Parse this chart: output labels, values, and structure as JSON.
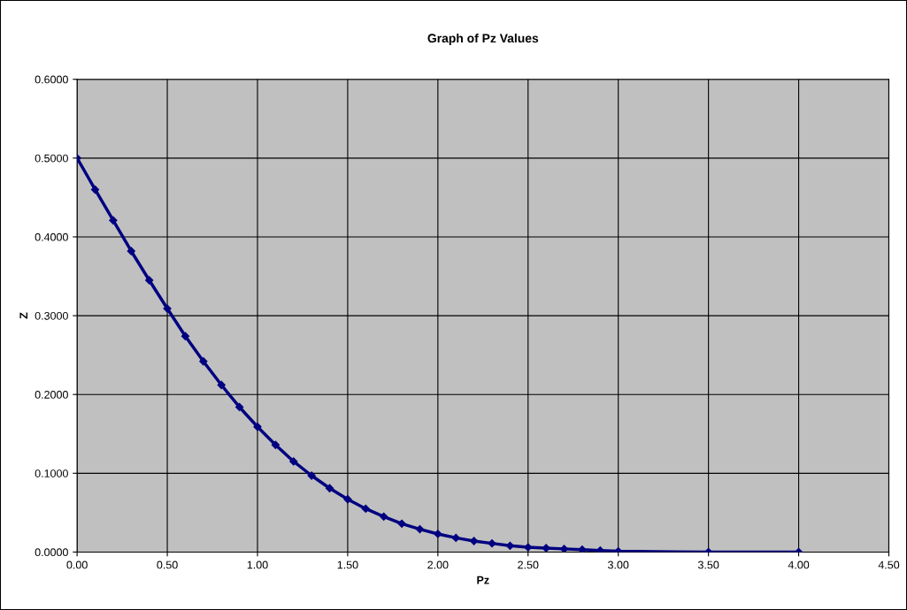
{
  "chart_data": {
    "type": "line",
    "title": "Graph of Pz Values",
    "xlabel": "Pz",
    "ylabel": "Z",
    "x": [
      0,
      0.1,
      0.2,
      0.3,
      0.4,
      0.5,
      0.6,
      0.7,
      0.8,
      0.9,
      1.0,
      1.1,
      1.2,
      1.3,
      1.4,
      1.5,
      1.6,
      1.7,
      1.8,
      1.9,
      2.0,
      2.1,
      2.2,
      2.3,
      2.4,
      2.5,
      2.6,
      2.7,
      2.8,
      2.9,
      3.0,
      3.5,
      4.0
    ],
    "series": [
      {
        "color": "#000080",
        "values": [
          0.5,
          0.46,
          0.421,
          0.382,
          0.345,
          0.309,
          0.274,
          0.242,
          0.212,
          0.184,
          0.159,
          0.136,
          0.115,
          0.097,
          0.081,
          0.067,
          0.055,
          0.045,
          0.036,
          0.029,
          0.023,
          0.018,
          0.014,
          0.011,
          0.008,
          0.006,
          0.005,
          0.004,
          0.003,
          0.002,
          0.001,
          0.0,
          0.0
        ]
      }
    ],
    "xlim": [
      0,
      4.5
    ],
    "xticks": [
      {
        "value": 0,
        "label": "0.00"
      },
      {
        "value": 0.5,
        "label": "0.50"
      },
      {
        "value": 1,
        "label": "1.00"
      },
      {
        "value": 1.5,
        "label": "1.50"
      },
      {
        "value": 2,
        "label": "2.00"
      },
      {
        "value": 2.5,
        "label": "2.50"
      },
      {
        "value": 3,
        "label": "3.00"
      },
      {
        "value": 3.5,
        "label": "3.50"
      },
      {
        "value": 4,
        "label": "4.00"
      },
      {
        "value": 4.5,
        "label": "4.50"
      }
    ],
    "ylim": [
      0,
      0.6
    ],
    "yticks": [
      {
        "value": 0,
        "label": "0.0000"
      },
      {
        "value": 0.1,
        "label": "0.1000"
      },
      {
        "value": 0.2,
        "label": "0.2000"
      },
      {
        "value": 0.3,
        "label": "0.3000"
      },
      {
        "value": 0.4,
        "label": "0.4000"
      },
      {
        "value": 0.5,
        "label": "0.5000"
      },
      {
        "value": 0.6,
        "label": "0.6000"
      }
    ],
    "grid": true,
    "marker": "diamond",
    "line_style": "solid"
  }
}
